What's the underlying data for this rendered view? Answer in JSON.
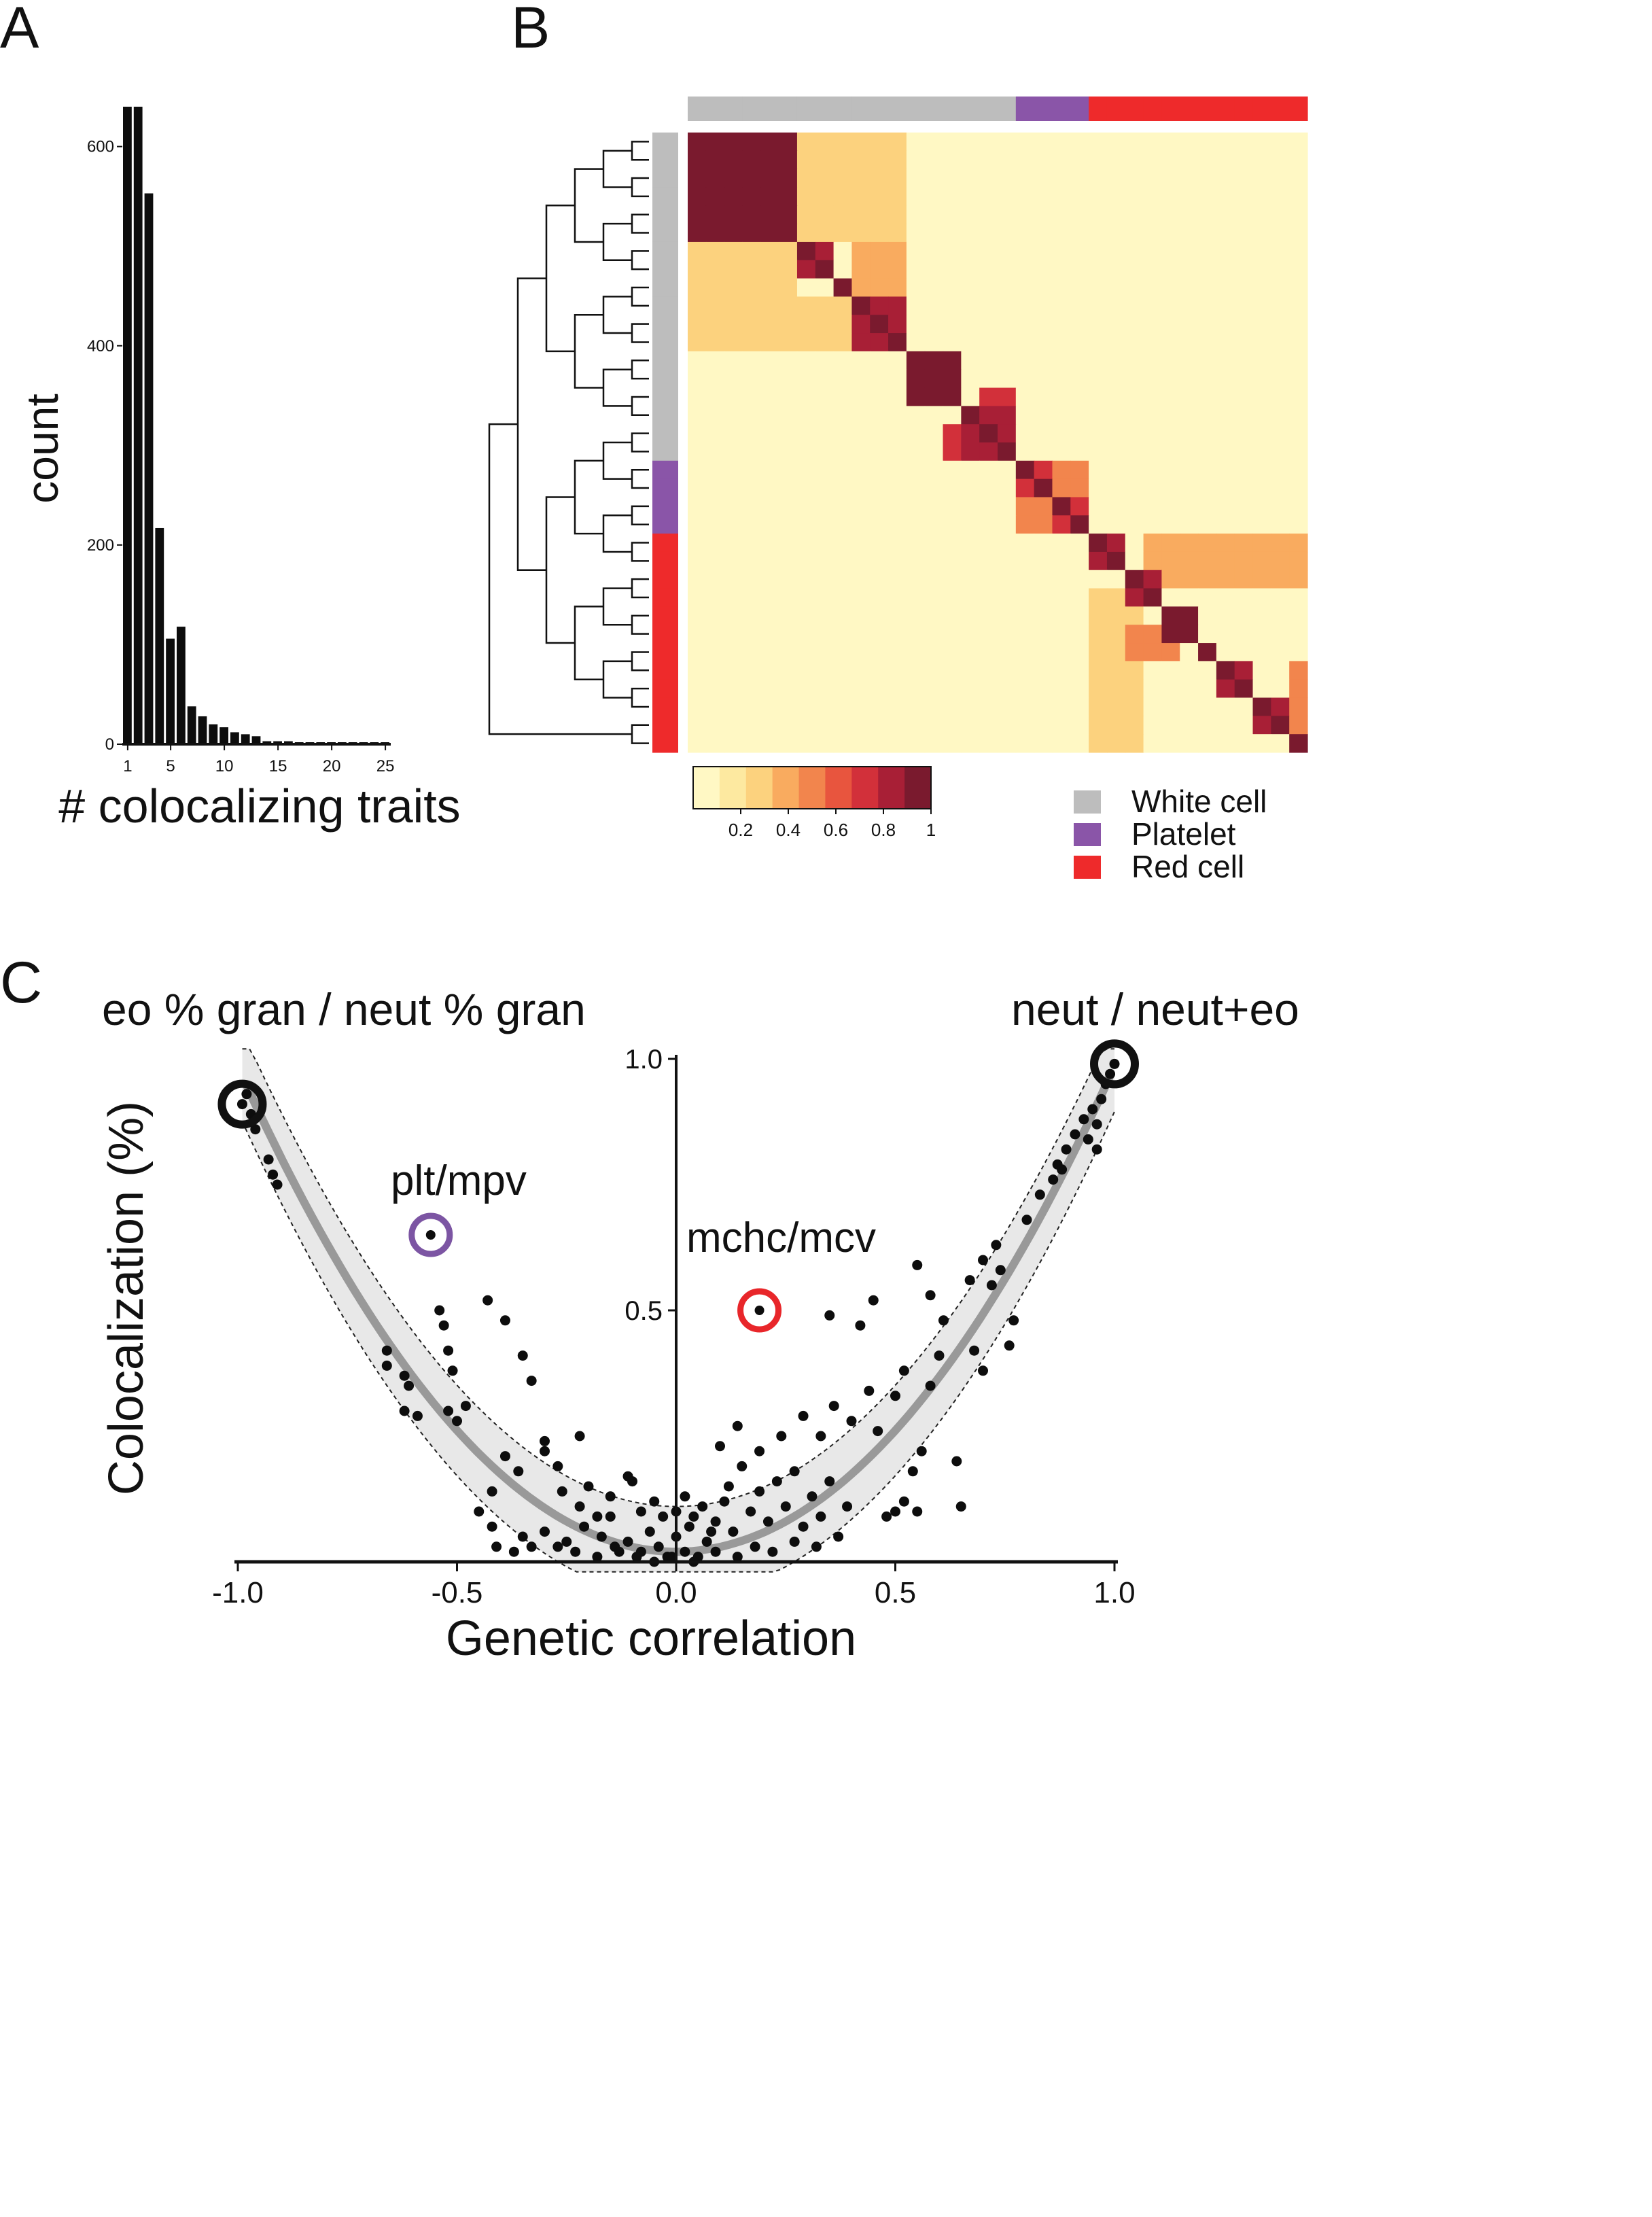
{
  "panel_labels": {
    "a": "A",
    "b": "B",
    "c": "C"
  },
  "chart_data": [
    {
      "panel": "A",
      "type": "bar",
      "xlabel": "# colocalizing traits",
      "ylabel": "count",
      "x_ticks": [
        "1",
        "5",
        "10",
        "15",
        "20",
        "25"
      ],
      "y_ticks": [
        "0",
        "200",
        "400",
        "600"
      ],
      "ylim": [
        0,
        640
      ],
      "grid": false,
      "categories": [
        1,
        2,
        3,
        4,
        5,
        6,
        7,
        8,
        9,
        10,
        11,
        12,
        13,
        14,
        15,
        16,
        17,
        18,
        19,
        20,
        21,
        22,
        23,
        24,
        25
      ],
      "values": [
        640,
        640,
        553,
        217,
        106,
        118,
        38,
        28,
        20,
        17,
        12,
        10,
        8,
        3,
        3,
        3,
        2,
        2,
        2,
        2,
        2,
        2,
        2,
        2,
        2
      ]
    },
    {
      "panel": "B",
      "type": "heatmap",
      "colorbar_ticks": [
        "0.2",
        "0.4",
        "0.6",
        "0.8",
        "1"
      ],
      "colorbar_colors": [
        "#fff8c4",
        "#fde9a0",
        "#fcd27e",
        "#f9ab5f",
        "#f2854d",
        "#e8553e",
        "#d2303a",
        "#a81f36",
        "#7a1a2e"
      ],
      "legend": [
        {
          "label": "White cell",
          "color": "#bdbdbd"
        },
        {
          "label": "Platelet",
          "color": "#8a55a8"
        },
        {
          "label": "Red cell",
          "color": "#ee2a2b"
        }
      ],
      "groups": [
        "W",
        "W",
        "W",
        "W",
        "W",
        "W",
        "W",
        "W",
        "W",
        "W",
        "W",
        "W",
        "W",
        "W",
        "W",
        "W",
        "W",
        "W",
        "P",
        "P",
        "P",
        "P",
        "R",
        "R",
        "R",
        "R",
        "R",
        "R",
        "R",
        "R",
        "R",
        "R",
        "R",
        "R"
      ],
      "blocks": [
        {
          "start": 0,
          "end": 6,
          "value": 0.95
        },
        {
          "start": 6,
          "end": 8,
          "value": 0.9
        },
        {
          "start": 9,
          "end": 12,
          "value": 0.92
        },
        {
          "start": 12,
          "end": 15,
          "value": 0.97
        },
        {
          "start": 15,
          "end": 18,
          "value": 0.92
        },
        {
          "start": 18,
          "end": 20,
          "value": 0.75
        },
        {
          "start": 20,
          "end": 22,
          "value": 0.7
        },
        {
          "start": 22,
          "end": 24,
          "value": 0.85
        },
        {
          "start": 24,
          "end": 26,
          "value": 0.92
        },
        {
          "start": 26,
          "end": 28,
          "value": 0.95
        },
        {
          "start": 29,
          "end": 31,
          "value": 0.93
        },
        {
          "start": 31,
          "end": 33,
          "value": 0.9
        },
        {
          "start": 33,
          "end": 34,
          "value": 0.95
        }
      ],
      "off_diagonal": [
        {
          "r0": 0,
          "r1": 6,
          "c0": 6,
          "c1": 12,
          "value": 0.2
        },
        {
          "r0": 6,
          "r1": 12,
          "c0": 0,
          "c1": 6,
          "value": 0.25
        },
        {
          "r0": 6,
          "r1": 9,
          "c0": 9,
          "c1": 12,
          "value": 0.35
        },
        {
          "r0": 9,
          "r1": 12,
          "c0": 6,
          "c1": 9,
          "value": 0.3
        },
        {
          "r0": 18,
          "r1": 22,
          "c0": 18,
          "c1": 22,
          "value": 0.5
        },
        {
          "r0": 22,
          "r1": 25,
          "c0": 25,
          "c1": 34,
          "value": 0.35
        },
        {
          "r0": 25,
          "r1": 34,
          "c0": 22,
          "c1": 25,
          "value": 0.3
        },
        {
          "r0": 27,
          "r1": 29,
          "c0": 24,
          "c1": 27,
          "value": 0.55
        },
        {
          "r0": 29,
          "r1": 34,
          "c0": 33,
          "c1": 34,
          "value": 0.55
        },
        {
          "r0": 16,
          "r1": 18,
          "c0": 14,
          "c1": 16,
          "value": 0.7
        },
        {
          "r0": 14,
          "r1": 16,
          "c0": 16,
          "c1": 18,
          "value": 0.7
        }
      ]
    },
    {
      "panel": "C",
      "type": "scatter",
      "xlabel": "Genetic correlation",
      "ylabel": "Colocalization (%)",
      "x_ticks": [
        "-1.0",
        "-0.5",
        "0.0",
        "0.5",
        "1.0"
      ],
      "y_ticks": [
        "0.5",
        "1.0"
      ],
      "xlim": [
        -1.0,
        1.0
      ],
      "ylim": [
        0,
        1.0
      ],
      "fit": "quadratic",
      "fit_band_halfwidth": 0.09,
      "annotations": [
        {
          "label": "eo % gran / neut % gran",
          "x": -0.99,
          "y": 0.91,
          "color": "#111111"
        },
        {
          "label": "neut / neut+eo",
          "x": 1.0,
          "y": 0.99,
          "color": "#111111"
        },
        {
          "label": "plt/mpv",
          "x": -0.56,
          "y": 0.65,
          "color": "#7c55a3"
        },
        {
          "label": "mchc/mcv",
          "x": 0.19,
          "y": 0.5,
          "color": "#e8262a"
        }
      ],
      "points": [
        [
          -0.99,
          0.91
        ],
        [
          -0.98,
          0.93
        ],
        [
          -0.97,
          0.89
        ],
        [
          -0.96,
          0.86
        ],
        [
          -0.93,
          0.8
        ],
        [
          -0.92,
          0.77
        ],
        [
          -0.91,
          0.75
        ],
        [
          -0.66,
          0.42
        ],
        [
          -0.66,
          0.39
        ],
        [
          -0.62,
          0.37
        ],
        [
          -0.61,
          0.35
        ],
        [
          -0.62,
          0.3
        ],
        [
          -0.59,
          0.29
        ],
        [
          -0.54,
          0.5
        ],
        [
          -0.53,
          0.47
        ],
        [
          -0.52,
          0.42
        ],
        [
          -0.51,
          0.38
        ],
        [
          -0.52,
          0.3
        ],
        [
          -0.5,
          0.28
        ],
        [
          -0.48,
          0.31
        ],
        [
          -0.43,
          0.52
        ],
        [
          -0.39,
          0.48
        ],
        [
          -0.35,
          0.41
        ],
        [
          -0.33,
          0.36
        ],
        [
          -0.3,
          0.24
        ],
        [
          -0.27,
          0.19
        ],
        [
          -0.22,
          0.25
        ],
        [
          -0.2,
          0.15
        ],
        [
          -0.15,
          0.09
        ],
        [
          -0.11,
          0.17
        ],
        [
          -0.39,
          0.21
        ],
        [
          -0.36,
          0.18
        ],
        [
          -0.3,
          0.22
        ],
        [
          -0.26,
          0.14
        ],
        [
          -0.42,
          0.14
        ],
        [
          -0.45,
          0.1
        ],
        [
          -0.42,
          0.07
        ],
        [
          -0.35,
          0.05
        ],
        [
          -0.3,
          0.06
        ],
        [
          -0.25,
          0.04
        ],
        [
          -0.21,
          0.07
        ],
        [
          -0.41,
          0.03
        ],
        [
          -0.37,
          0.02
        ],
        [
          -0.33,
          0.03
        ],
        [
          -0.22,
          0.11
        ],
        [
          -0.18,
          0.09
        ],
        [
          -0.17,
          0.05
        ],
        [
          -0.14,
          0.03
        ],
        [
          -0.11,
          0.04
        ],
        [
          -0.08,
          0.02
        ],
        [
          -0.06,
          0.06
        ],
        [
          -0.04,
          0.03
        ],
        [
          -0.02,
          0.01
        ],
        [
          0.0,
          0.05
        ],
        [
          0.02,
          0.02
        ],
        [
          0.03,
          0.07
        ],
        [
          0.05,
          0.01
        ],
        [
          0.07,
          0.04
        ],
        [
          0.08,
          0.06
        ],
        [
          -0.15,
          0.13
        ],
        [
          -0.1,
          0.16
        ],
        [
          -0.08,
          0.1
        ],
        [
          -0.05,
          0.12
        ],
        [
          -0.03,
          0.09
        ],
        [
          0.0,
          0.1
        ],
        [
          0.02,
          0.13
        ],
        [
          0.04,
          0.09
        ],
        [
          0.06,
          0.11
        ],
        [
          0.09,
          0.08
        ],
        [
          0.11,
          0.12
        ],
        [
          0.13,
          0.06
        ],
        [
          0.12,
          0.15
        ],
        [
          0.15,
          0.19
        ],
        [
          0.17,
          0.1
        ],
        [
          0.19,
          0.14
        ],
        [
          0.21,
          0.08
        ],
        [
          0.23,
          0.16
        ],
        [
          0.25,
          0.11
        ],
        [
          0.27,
          0.18
        ],
        [
          0.29,
          0.07
        ],
        [
          0.31,
          0.13
        ],
        [
          0.33,
          0.09
        ],
        [
          0.35,
          0.16
        ],
        [
          0.37,
          0.05
        ],
        [
          0.39,
          0.11
        ],
        [
          0.1,
          0.23
        ],
        [
          0.14,
          0.27
        ],
        [
          0.19,
          0.22
        ],
        [
          0.24,
          0.25
        ],
        [
          0.29,
          0.29
        ],
        [
          0.33,
          0.25
        ],
        [
          0.36,
          0.31
        ],
        [
          0.4,
          0.28
        ],
        [
          0.44,
          0.34
        ],
        [
          0.46,
          0.26
        ],
        [
          0.5,
          0.33
        ],
        [
          0.52,
          0.38
        ],
        [
          0.35,
          0.49
        ],
        [
          0.42,
          0.47
        ],
        [
          0.45,
          0.52
        ],
        [
          0.55,
          0.59
        ],
        [
          0.58,
          0.53
        ],
        [
          0.61,
          0.48
        ],
        [
          0.6,
          0.41
        ],
        [
          0.58,
          0.35
        ],
        [
          0.56,
          0.22
        ],
        [
          0.54,
          0.18
        ],
        [
          0.52,
          0.12
        ],
        [
          0.5,
          0.1
        ],
        [
          0.48,
          0.09
        ],
        [
          0.55,
          0.1
        ],
        [
          0.65,
          0.11
        ],
        [
          0.64,
          0.2
        ],
        [
          0.67,
          0.56
        ],
        [
          0.7,
          0.6
        ],
        [
          0.73,
          0.63
        ],
        [
          0.74,
          0.58
        ],
        [
          0.76,
          0.43
        ],
        [
          0.77,
          0.48
        ],
        [
          0.68,
          0.42
        ],
        [
          0.7,
          0.38
        ],
        [
          0.72,
          0.55
        ],
        [
          0.8,
          0.68
        ],
        [
          0.83,
          0.73
        ],
        [
          0.86,
          0.76
        ],
        [
          0.87,
          0.79
        ],
        [
          0.89,
          0.82
        ],
        [
          0.91,
          0.85
        ],
        [
          0.93,
          0.88
        ],
        [
          0.95,
          0.9
        ],
        [
          0.96,
          0.87
        ],
        [
          0.97,
          0.92
        ],
        [
          0.98,
          0.95
        ],
        [
          0.99,
          0.97
        ],
        [
          1.0,
          0.99
        ],
        [
          0.96,
          0.82
        ],
        [
          0.94,
          0.84
        ],
        [
          0.88,
          0.78
        ],
        [
          -0.27,
          0.03
        ],
        [
          -0.23,
          0.02
        ],
        [
          -0.18,
          0.01
        ],
        [
          -0.13,
          0.02
        ],
        [
          -0.09,
          0.01
        ],
        [
          -0.05,
          0.0
        ],
        [
          -0.01,
          0.01
        ],
        [
          0.04,
          0.0
        ],
        [
          0.09,
          0.02
        ],
        [
          0.14,
          0.01
        ],
        [
          0.18,
          0.03
        ],
        [
          0.22,
          0.02
        ],
        [
          0.27,
          0.04
        ],
        [
          0.32,
          0.03
        ]
      ]
    }
  ]
}
